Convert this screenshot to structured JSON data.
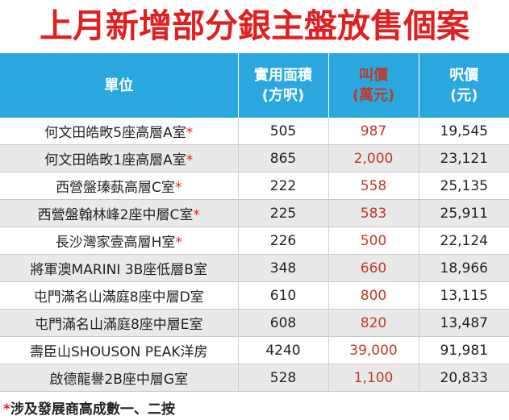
{
  "title": "上月新增部分銀主盤放售個案",
  "headers": {
    "unit": "單位",
    "area_line1": "實用面積",
    "area_line2": "(方呎)",
    "price_line1": "叫價",
    "price_line2": "(萬元)",
    "psf_line1": "呎價",
    "psf_line2": "(元)"
  },
  "rows": [
    {
      "unit": "何文田皓畋5座高層A室",
      "mark": "*",
      "area": "505",
      "price": "987",
      "psf": "19,545"
    },
    {
      "unit": "何文田皓畋1座高層A室",
      "mark": "*",
      "area": "865",
      "price": "2,000",
      "psf": "23,121"
    },
    {
      "unit": "西營盤瑧蓺高層C室",
      "mark": "*",
      "area": "222",
      "price": "558",
      "psf": "25,135"
    },
    {
      "unit": "西營盤翰林峰2座中層C室",
      "mark": "*",
      "area": "225",
      "price": "583",
      "psf": "25,911"
    },
    {
      "unit": "長沙灣家壹高層H室",
      "mark": "*",
      "area": "226",
      "price": "500",
      "psf": "22,124"
    },
    {
      "unit": "將軍澳MARINI 3B座低層B室",
      "mark": "",
      "area": "348",
      "price": "660",
      "psf": "18,966"
    },
    {
      "unit": "屯門滿名山滿庭8座中層D室",
      "mark": "",
      "area": "610",
      "price": "800",
      "psf": "13,115"
    },
    {
      "unit": "屯門滿名山滿庭8座中層E室",
      "mark": "",
      "area": "608",
      "price": "820",
      "psf": "13,487"
    },
    {
      "unit": "壽臣山SHOUSON PEAK洋房",
      "mark": "",
      "area": "4240",
      "price": "39,000",
      "psf": "91,981"
    },
    {
      "unit": "啟德龍譽2B座中層G室",
      "mark": "",
      "area": "528",
      "price": "1,100",
      "psf": "20,833"
    }
  ],
  "footnote": {
    "mark": "*",
    "text": "涉及發展商高成數一、二按"
  },
  "colors": {
    "title": "#e02020",
    "header_bg": "#2aa7de",
    "price_text": "#c0392b",
    "alt_row_bg": "#e9e9e9"
  }
}
